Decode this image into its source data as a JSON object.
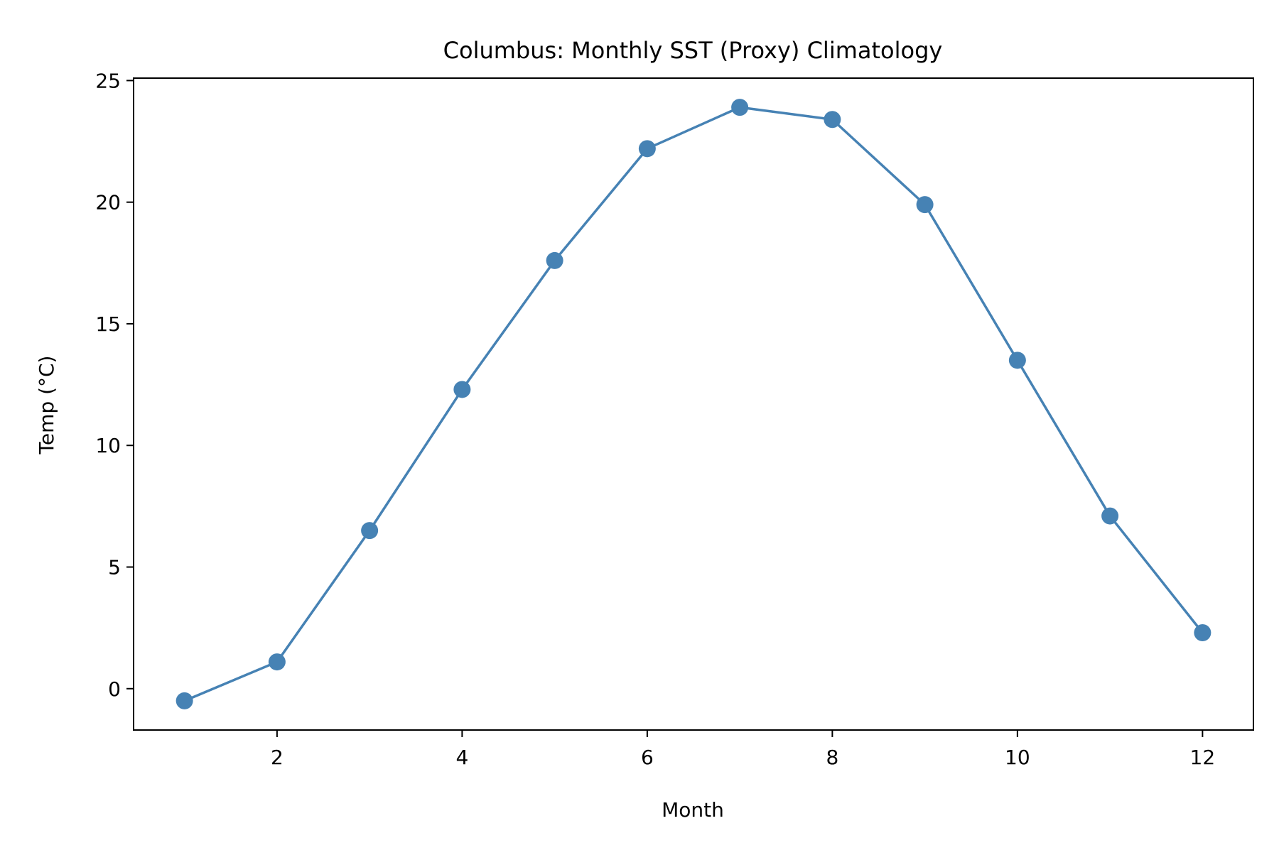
{
  "chart_data": {
    "type": "line",
    "title": "Columbus: Monthly SST (Proxy) Climatology",
    "xlabel": "Month",
    "ylabel": "Temp (°C)",
    "x": [
      1,
      2,
      3,
      4,
      5,
      6,
      7,
      8,
      9,
      10,
      11,
      12
    ],
    "series": [
      {
        "values": [
          -0.5,
          1.1,
          6.5,
          12.3,
          17.6,
          22.2,
          23.9,
          23.4,
          19.9,
          13.5,
          7.1,
          2.3
        ],
        "color": "#4682b4",
        "marker": "circle"
      }
    ],
    "xlim": [
      0.45,
      12.55
    ],
    "ylim": [
      -1.7,
      25.1
    ],
    "xticks": [
      2,
      4,
      6,
      8,
      10,
      12
    ],
    "yticks": [
      0,
      5,
      10,
      15,
      20,
      25
    ],
    "grid": false,
    "legend": false
  }
}
